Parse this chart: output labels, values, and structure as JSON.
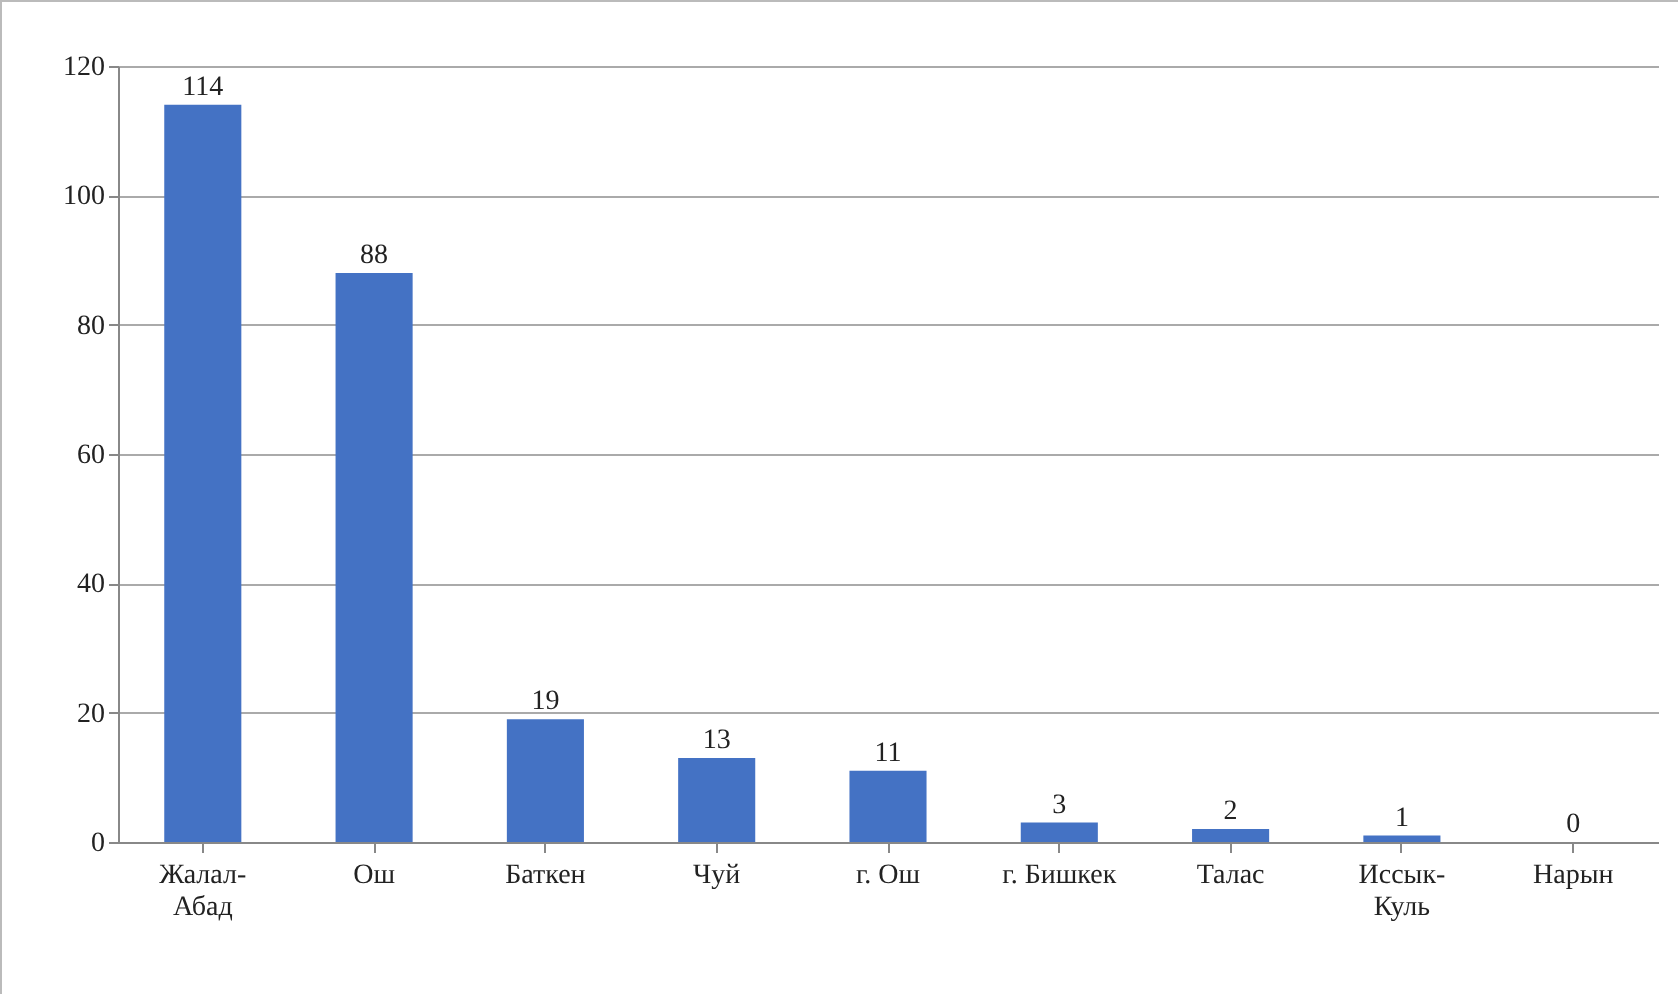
{
  "chart_data": {
    "type": "bar",
    "categories": [
      "Жалал-Абад",
      "Ош",
      "Баткен",
      "Чуй",
      "г. Ош",
      "г. Бишкек",
      "Талас",
      "Иссык-Куль",
      "Нарын"
    ],
    "values": [
      114,
      88,
      19,
      13,
      11,
      3,
      2,
      1,
      0
    ],
    "color": "#4472c4",
    "ylim": [
      0,
      120
    ],
    "yticks": [
      0,
      20,
      40,
      60,
      80,
      100,
      120
    ],
    "grid": "y",
    "data_labels": true
  }
}
